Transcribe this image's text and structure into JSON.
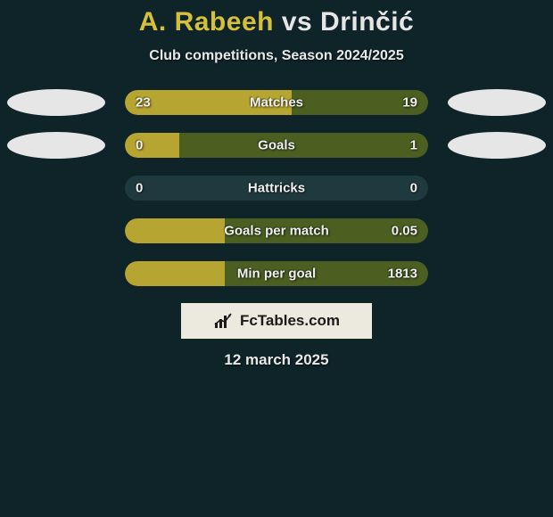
{
  "colors": {
    "background": "#0f2428",
    "player1": "#d6bf3b",
    "player2": "#e6e6e6",
    "bar_left": "#b7a531",
    "bar_right": "#4b5f21",
    "bar_bg": "#1f3a3f",
    "text_light": "#e8e8e8",
    "watermark_bg": "#eceadf",
    "watermark_text": "#1a1a1a"
  },
  "title": {
    "player1": "A. Rabeeh",
    "vs": "vs",
    "player2": "Drinčić",
    "fontsize": 30
  },
  "subtitle": "Club competitions, Season 2024/2025",
  "ovals": {
    "row0_left": "#e6e6e6",
    "row0_right": "#e6e6e6",
    "row1_left": "#e6e6e6",
    "row1_right": "#e6e6e6"
  },
  "stats": [
    {
      "label": "Matches",
      "left_val": "23",
      "right_val": "19",
      "left_pct": 55,
      "right_pct": 45,
      "show_ovals": true
    },
    {
      "label": "Goals",
      "left_val": "0",
      "right_val": "1",
      "left_pct": 18,
      "right_pct": 82,
      "show_ovals": true
    },
    {
      "label": "Hattricks",
      "left_val": "0",
      "right_val": "0",
      "left_pct": 0,
      "right_pct": 0,
      "show_ovals": false
    },
    {
      "label": "Goals per match",
      "left_val": "",
      "right_val": "0.05",
      "left_pct": 33,
      "right_pct": 67,
      "show_ovals": false
    },
    {
      "label": "Min per goal",
      "left_val": "",
      "right_val": "1813",
      "left_pct": 33,
      "right_pct": 67,
      "show_ovals": false
    }
  ],
  "watermark": "FcTables.com",
  "date": "12 march 2025"
}
